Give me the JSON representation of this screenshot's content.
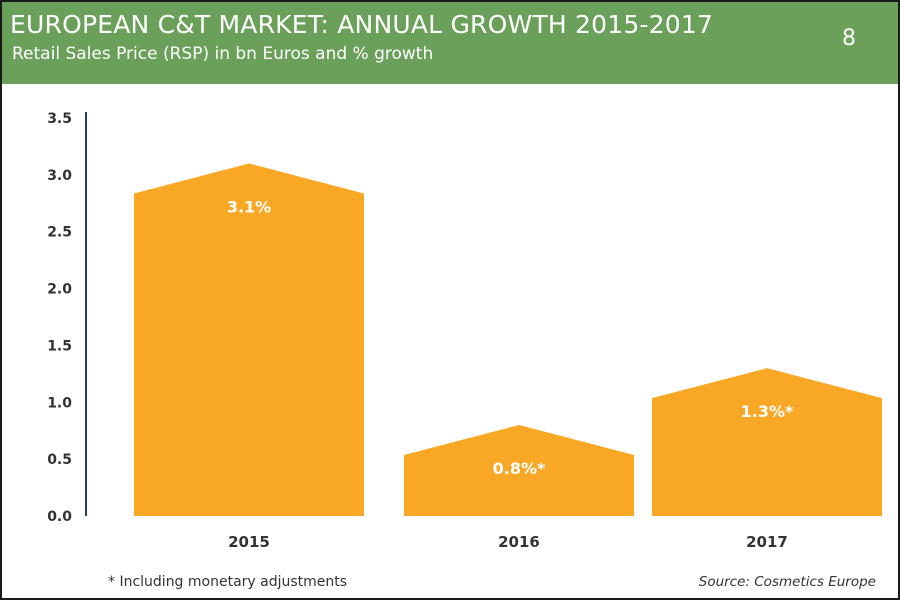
{
  "header": {
    "title": "EUROPEAN C&T MARKET: ANNUAL GROWTH 2015-2017",
    "subtitle": "Retail Sales Price (RSP) in bn Euros and % growth",
    "page_number": "8"
  },
  "footer": {
    "note": "* Including monetary adjustments",
    "source": "Source: Cosmetics Europe"
  },
  "colors": {
    "header_bg": "#6aa05a",
    "bar": "#f9a825",
    "axis": "#1f3f5f",
    "label_text": "#ffffff"
  },
  "chart_data": {
    "type": "bar",
    "title": "EUROPEAN C&T MARKET: ANNUAL GROWTH 2015-2017",
    "subtitle": "Retail Sales Price (RSP) in bn Euros and % growth",
    "xlabel": "",
    "ylabel": "",
    "categories": [
      "2015",
      "2016",
      "2017"
    ],
    "values": [
      3.1,
      0.8,
      1.3
    ],
    "data_labels": [
      "3.1%",
      "0.8%*",
      "1.3%*"
    ],
    "ylim": [
      0,
      3.5
    ],
    "y_ticks": [
      "0.0",
      "0.5",
      "1.0",
      "1.5",
      "2.0",
      "2.5",
      "3.0",
      "3.5"
    ],
    "grid": false,
    "legend": "none"
  }
}
